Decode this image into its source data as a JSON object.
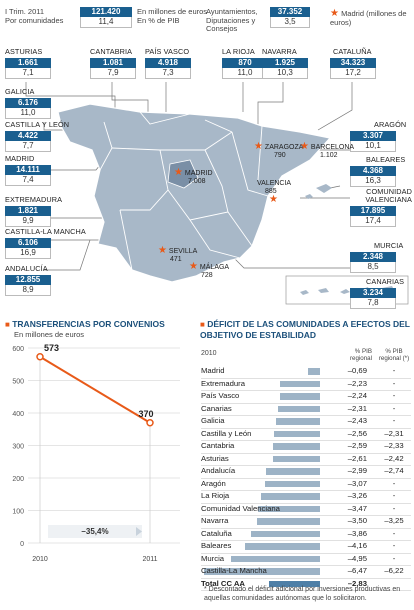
{
  "header": {
    "period_line1": "I Trim. 2011",
    "period_line2": "Por comunidades",
    "legend_value1": "121.420",
    "legend_value2": "11,4",
    "legend_label1": "En millones de euros",
    "legend_label2": "En % de PIB",
    "ayunt_label": "Ayuntamientos, Diputaciones y Consejos",
    "ayunt_value1": "37.352",
    "ayunt_value2": "3,5",
    "madrid_legend": "Madrid (millones de euros)"
  },
  "map_colors": {
    "land": "#a8b8c8",
    "map_region": "#7a8fa6",
    "accent": "#1a5f8f",
    "highlight": "#e85a19"
  },
  "regions": [
    {
      "name": "Asturias",
      "amount": "1.661",
      "pct": "7,1"
    },
    {
      "name": "Cantabria",
      "amount": "1.081",
      "pct": "7,9"
    },
    {
      "name": "País Vasco",
      "amount": "4.918",
      "pct": "7,3"
    },
    {
      "name": "La Rioja",
      "amount": "870",
      "pct": "11,0"
    },
    {
      "name": "Navarra",
      "amount": "1.925",
      "pct": "10,3"
    },
    {
      "name": "Cataluña",
      "amount": "34.323",
      "pct": "17,2"
    },
    {
      "name": "Galicia",
      "amount": "6.176",
      "pct": "11,0"
    },
    {
      "name": "Castilla y León",
      "amount": "4.422",
      "pct": "7,7"
    },
    {
      "name": "Aragón",
      "amount": "3.307",
      "pct": "10,1"
    },
    {
      "name": "Madrid",
      "amount": "14.111",
      "pct": "7,4"
    },
    {
      "name": "Baleares",
      "amount": "4.368",
      "pct": "16,3"
    },
    {
      "name": "Extremadura",
      "amount": "1.821",
      "pct": "9,9"
    },
    {
      "name": "Comunidad Valenciana",
      "amount": "17.895",
      "pct": "17,4"
    },
    {
      "name": "Castilla-La Mancha",
      "amount": "6.106",
      "pct": "16,9"
    },
    {
      "name": "Murcia",
      "amount": "2.348",
      "pct": "8,5"
    },
    {
      "name": "Andalucía",
      "amount": "12.855",
      "pct": "8,9"
    },
    {
      "name": "Canarias",
      "amount": "3.234",
      "pct": "7,8"
    }
  ],
  "cities": [
    {
      "name": "Zaragoza",
      "value": "790"
    },
    {
      "name": "Barcelona",
      "value": "1.102"
    },
    {
      "name": "Madrid",
      "value": "7.008"
    },
    {
      "name": "Valencia",
      "value": "885"
    },
    {
      "name": "Sevilla",
      "value": "471"
    },
    {
      "name": "Málaga",
      "value": "728"
    }
  ],
  "chart_data": [
    {
      "type": "line",
      "title": "Transferencias por convenios",
      "subtitle": "En millones de euros",
      "categories": [
        "2010",
        "2011"
      ],
      "values": [
        573,
        370
      ],
      "value_labels": [
        "573",
        "370"
      ],
      "ylim": [
        0,
        600
      ],
      "yticks": [
        "0",
        "100",
        "200",
        "300",
        "400",
        "500",
        "600"
      ],
      "change_label": "–35,4%",
      "grid": true,
      "color": "#e85a19"
    },
    {
      "type": "bar",
      "title": "Déficit de las comunidades a efectos del objetivo de estabilidad",
      "year_label": "2010",
      "col1_header": "% PIB regional",
      "col2_header": "% PIB regional (*)",
      "categories": [
        "Madrid",
        "Extremadura",
        "País Vasco",
        "Canarias",
        "Galicia",
        "Castilla y León",
        "Cantabria",
        "Asturias",
        "Andalucía",
        "Aragón",
        "La Rioja",
        "Comunidad Valenciana",
        "Navarra",
        "Cataluña",
        "Baleares",
        "Murcia",
        "Castilla-La Mancha",
        "Total CC AA"
      ],
      "values": [
        -0.69,
        -2.23,
        -2.24,
        -2.31,
        -2.43,
        -2.56,
        -2.59,
        -2.61,
        -2.99,
        -3.07,
        -3.26,
        -3.47,
        -3.5,
        -3.86,
        -4.16,
        -4.95,
        -6.47,
        -2.83
      ],
      "labels1": [
        "–0,69",
        "–2,23",
        "–2,24",
        "–2,31",
        "–2,43",
        "–2,56",
        "–2,59",
        "–2,61",
        "–2,99",
        "–3,07",
        "–3,26",
        "–3,47",
        "–3,50",
        "–3,86",
        "–4,16",
        "–4,95",
        "–6,47",
        "–2,83"
      ],
      "labels2": [
        "-",
        "-",
        "-",
        "-",
        "-",
        "–2,31",
        "–2,33",
        "–2,42",
        "–2,74",
        "-",
        "-",
        "-",
        "–3,25",
        "-",
        "-",
        "-",
        "–6,22",
        ""
      ],
      "footnote": "* Descontado el déficit adicional por inversiones productivas en aquellas comunidades autónomas que lo solicitaron."
    }
  ]
}
